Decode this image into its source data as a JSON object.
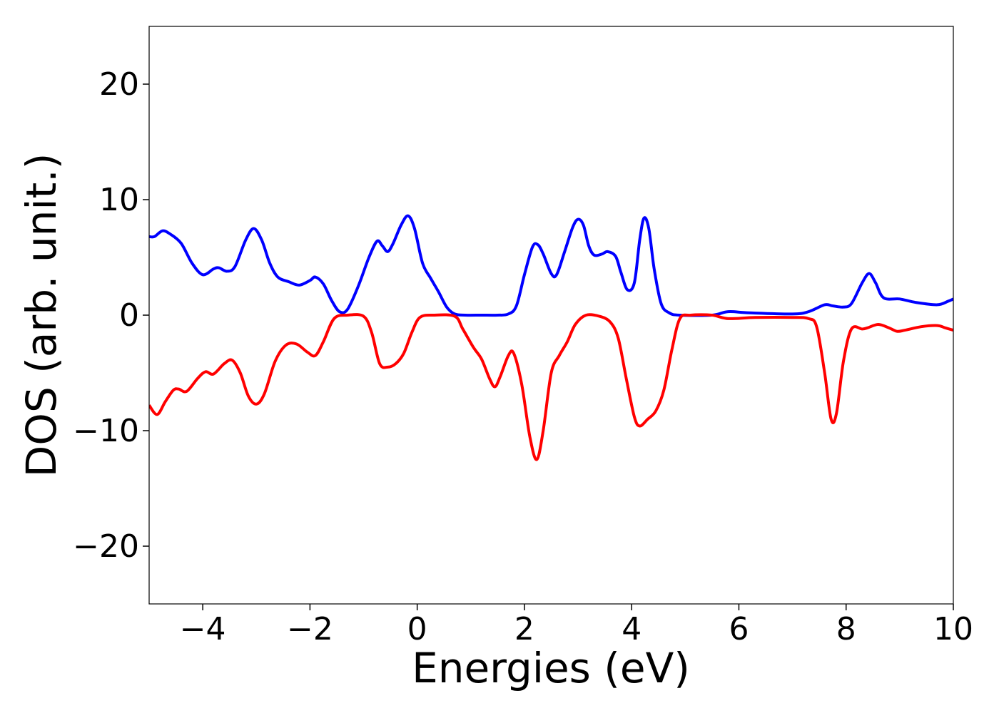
{
  "chart_data": {
    "type": "line",
    "title": "",
    "xlabel": "Energies (eV)",
    "ylabel": "DOS (arb. unit.)",
    "xlim": [
      -5,
      10
    ],
    "ylim": [
      -25,
      25
    ],
    "x_ticks": [
      -4,
      -2,
      0,
      2,
      4,
      6,
      8,
      10
    ],
    "x_tick_labels": [
      "−4",
      "−2",
      "0",
      "2",
      "4",
      "6",
      "8",
      "10"
    ],
    "y_ticks": [
      -20,
      -10,
      0,
      10,
      20
    ],
    "y_tick_labels": [
      "−20",
      "−10",
      "0",
      "10",
      "20"
    ],
    "grid": false,
    "legend": "none",
    "series": [
      {
        "color": "#0000ff",
        "points": [
          [
            -5.0,
            6.8
          ],
          [
            -4.9,
            6.8
          ],
          [
            -4.75,
            7.3
          ],
          [
            -4.6,
            7.0
          ],
          [
            -4.4,
            6.2
          ],
          [
            -4.2,
            4.5
          ],
          [
            -4.0,
            3.5
          ],
          [
            -3.8,
            4.0
          ],
          [
            -3.7,
            4.1
          ],
          [
            -3.55,
            3.8
          ],
          [
            -3.4,
            4.2
          ],
          [
            -3.2,
            6.5
          ],
          [
            -3.05,
            7.5
          ],
          [
            -2.9,
            6.5
          ],
          [
            -2.75,
            4.5
          ],
          [
            -2.6,
            3.3
          ],
          [
            -2.4,
            2.9
          ],
          [
            -2.2,
            2.6
          ],
          [
            -2.0,
            3.0
          ],
          [
            -1.9,
            3.3
          ],
          [
            -1.75,
            2.7
          ],
          [
            -1.6,
            1.3
          ],
          [
            -1.45,
            0.3
          ],
          [
            -1.3,
            0.5
          ],
          [
            -1.1,
            2.5
          ],
          [
            -0.9,
            5.0
          ],
          [
            -0.75,
            6.4
          ],
          [
            -0.65,
            6.0
          ],
          [
            -0.55,
            5.5
          ],
          [
            -0.45,
            6.2
          ],
          [
            -0.3,
            7.8
          ],
          [
            -0.17,
            8.6
          ],
          [
            -0.05,
            7.5
          ],
          [
            0.1,
            4.5
          ],
          [
            0.25,
            3.2
          ],
          [
            0.4,
            2.0
          ],
          [
            0.55,
            0.7
          ],
          [
            0.7,
            0.1
          ],
          [
            0.9,
            0.0
          ],
          [
            1.2,
            0.0
          ],
          [
            1.5,
            0.0
          ],
          [
            1.7,
            0.1
          ],
          [
            1.85,
            0.8
          ],
          [
            2.0,
            3.5
          ],
          [
            2.15,
            5.9
          ],
          [
            2.25,
            6.1
          ],
          [
            2.35,
            5.3
          ],
          [
            2.5,
            3.6
          ],
          [
            2.6,
            3.5
          ],
          [
            2.75,
            5.5
          ],
          [
            2.9,
            7.6
          ],
          [
            3.0,
            8.3
          ],
          [
            3.1,
            7.8
          ],
          [
            3.2,
            6.0
          ],
          [
            3.3,
            5.2
          ],
          [
            3.45,
            5.3
          ],
          [
            3.55,
            5.5
          ],
          [
            3.7,
            5.1
          ],
          [
            3.8,
            3.7
          ],
          [
            3.92,
            2.2
          ],
          [
            4.05,
            2.8
          ],
          [
            4.15,
            6.5
          ],
          [
            4.23,
            8.4
          ],
          [
            4.32,
            7.5
          ],
          [
            4.42,
            4.0
          ],
          [
            4.55,
            1.0
          ],
          [
            4.7,
            0.2
          ],
          [
            4.9,
            0.0
          ],
          [
            5.5,
            0.0
          ],
          [
            5.8,
            0.3
          ],
          [
            6.2,
            0.2
          ],
          [
            7.0,
            0.1
          ],
          [
            7.3,
            0.3
          ],
          [
            7.6,
            0.9
          ],
          [
            7.75,
            0.8
          ],
          [
            7.95,
            0.7
          ],
          [
            8.1,
            1.0
          ],
          [
            8.3,
            2.8
          ],
          [
            8.43,
            3.6
          ],
          [
            8.55,
            2.8
          ],
          [
            8.7,
            1.5
          ],
          [
            9.0,
            1.4
          ],
          [
            9.3,
            1.1
          ],
          [
            9.7,
            0.9
          ],
          [
            9.9,
            1.2
          ],
          [
            10.0,
            1.4
          ]
        ]
      },
      {
        "color": "#ff0000",
        "points": [
          [
            -5.0,
            -7.8
          ],
          [
            -4.85,
            -8.6
          ],
          [
            -4.7,
            -7.5
          ],
          [
            -4.55,
            -6.5
          ],
          [
            -4.45,
            -6.4
          ],
          [
            -4.3,
            -6.6
          ],
          [
            -4.1,
            -5.5
          ],
          [
            -3.95,
            -4.9
          ],
          [
            -3.8,
            -5.1
          ],
          [
            -3.6,
            -4.2
          ],
          [
            -3.45,
            -3.9
          ],
          [
            -3.3,
            -5.0
          ],
          [
            -3.15,
            -7.0
          ],
          [
            -3.0,
            -7.7
          ],
          [
            -2.85,
            -6.8
          ],
          [
            -2.65,
            -4.0
          ],
          [
            -2.45,
            -2.6
          ],
          [
            -2.25,
            -2.5
          ],
          [
            -2.05,
            -3.2
          ],
          [
            -1.9,
            -3.5
          ],
          [
            -1.75,
            -2.3
          ],
          [
            -1.55,
            -0.3
          ],
          [
            -1.3,
            0.0
          ],
          [
            -1.0,
            -0.1
          ],
          [
            -0.85,
            -1.5
          ],
          [
            -0.7,
            -4.2
          ],
          [
            -0.55,
            -4.5
          ],
          [
            -0.4,
            -4.2
          ],
          [
            -0.25,
            -3.3
          ],
          [
            -0.1,
            -1.5
          ],
          [
            0.05,
            -0.2
          ],
          [
            0.3,
            0.0
          ],
          [
            0.7,
            -0.1
          ],
          [
            0.85,
            -1.2
          ],
          [
            1.05,
            -2.8
          ],
          [
            1.2,
            -3.8
          ],
          [
            1.35,
            -5.5
          ],
          [
            1.45,
            -6.2
          ],
          [
            1.55,
            -5.3
          ],
          [
            1.7,
            -3.5
          ],
          [
            1.8,
            -3.3
          ],
          [
            1.95,
            -6.0
          ],
          [
            2.1,
            -10.5
          ],
          [
            2.23,
            -12.5
          ],
          [
            2.35,
            -10.0
          ],
          [
            2.5,
            -5.0
          ],
          [
            2.65,
            -3.5
          ],
          [
            2.8,
            -2.3
          ],
          [
            2.95,
            -0.8
          ],
          [
            3.15,
            0.0
          ],
          [
            3.4,
            -0.1
          ],
          [
            3.6,
            -0.6
          ],
          [
            3.75,
            -2.0
          ],
          [
            3.9,
            -5.5
          ],
          [
            4.05,
            -8.8
          ],
          [
            4.15,
            -9.6
          ],
          [
            4.3,
            -9.0
          ],
          [
            4.45,
            -8.3
          ],
          [
            4.6,
            -6.5
          ],
          [
            4.75,
            -3.0
          ],
          [
            4.9,
            -0.3
          ],
          [
            5.1,
            0.0
          ],
          [
            5.5,
            0.0
          ],
          [
            5.8,
            -0.3
          ],
          [
            6.3,
            -0.2
          ],
          [
            7.0,
            -0.2
          ],
          [
            7.3,
            -0.3
          ],
          [
            7.45,
            -1.0
          ],
          [
            7.6,
            -5.0
          ],
          [
            7.72,
            -9.0
          ],
          [
            7.82,
            -8.5
          ],
          [
            7.95,
            -4.0
          ],
          [
            8.1,
            -1.2
          ],
          [
            8.3,
            -1.2
          ],
          [
            8.4,
            -1.1
          ],
          [
            8.6,
            -0.8
          ],
          [
            8.8,
            -1.1
          ],
          [
            8.95,
            -1.4
          ],
          [
            9.1,
            -1.3
          ],
          [
            9.4,
            -1.0
          ],
          [
            9.7,
            -0.9
          ],
          [
            9.85,
            -1.1
          ],
          [
            10.0,
            -1.3
          ]
        ]
      }
    ]
  }
}
